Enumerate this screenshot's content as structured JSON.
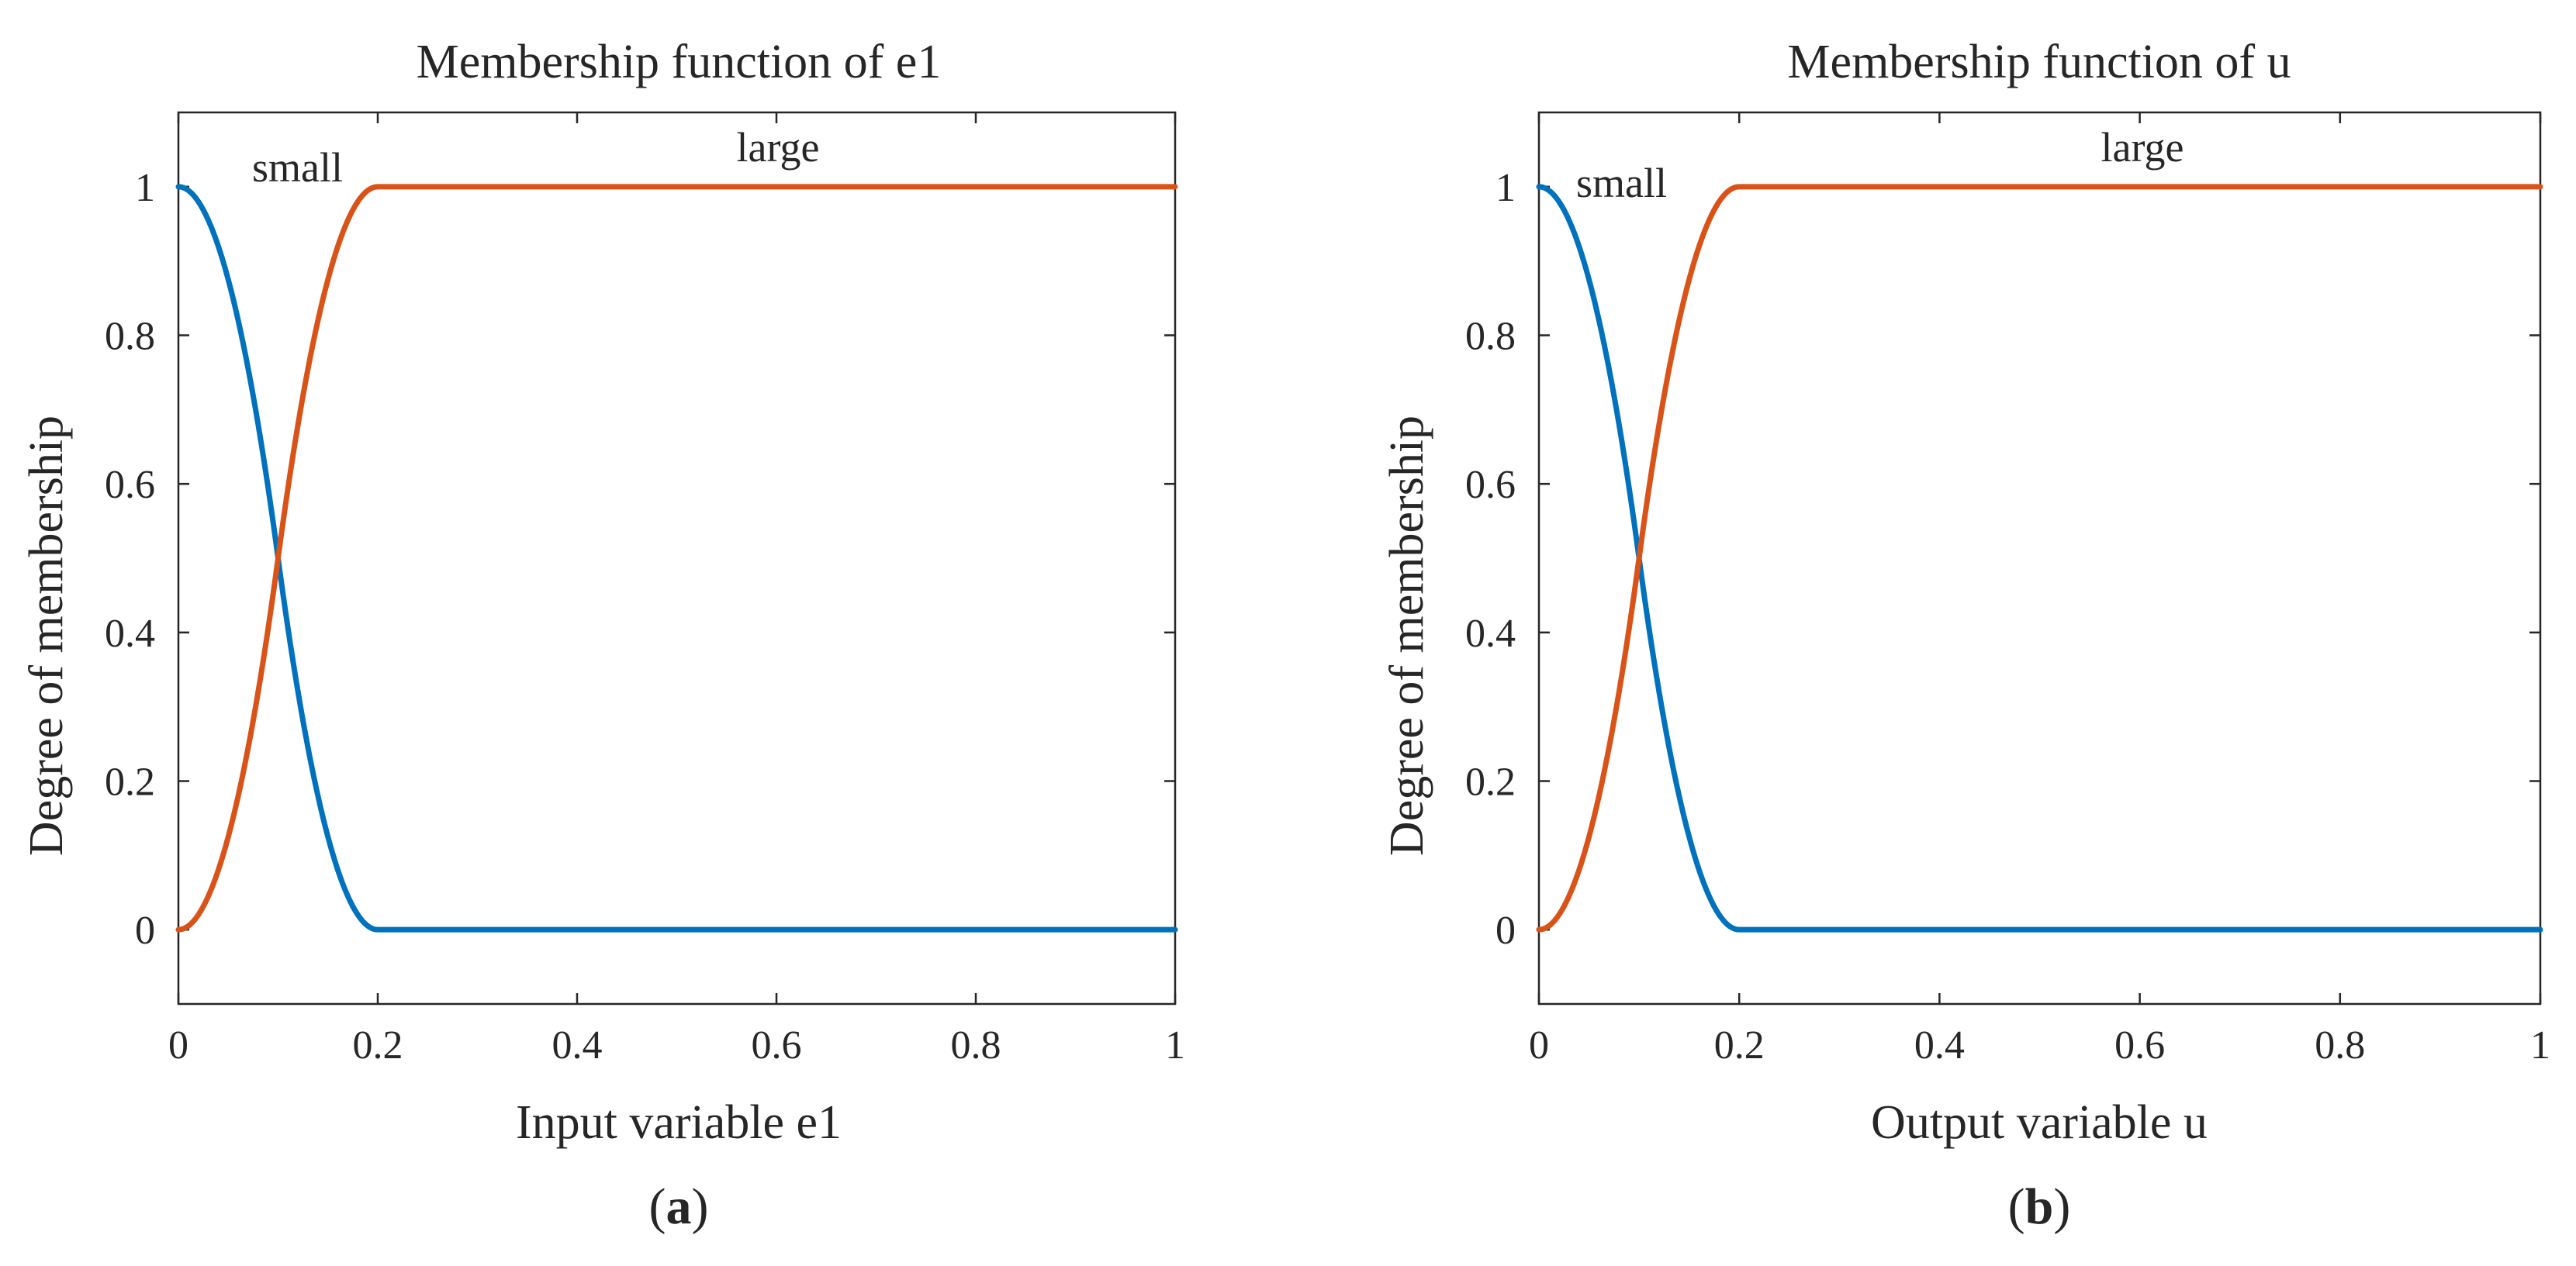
{
  "colors": {
    "small": "#0072BD",
    "large": "#D95319",
    "axis": "#262626"
  },
  "chart_data": [
    {
      "type": "line",
      "panel_label": "a",
      "title": "Membership function of e1",
      "xlabel": "Input variable e1",
      "ylabel": "Degree of membership",
      "xlim": [
        0,
        1
      ],
      "ylim": [
        -0.1,
        1.1
      ],
      "xticks": [
        0,
        0.2,
        0.4,
        0.6,
        0.8,
        1
      ],
      "xtick_labels": [
        "0",
        "0.2",
        "0.4",
        "0.6",
        "0.8",
        "1"
      ],
      "yticks": [
        0,
        0.2,
        0.4,
        0.6,
        0.8,
        1
      ],
      "ytick_labels": [
        "0",
        "0.2",
        "0.4",
        "0.6",
        "0.8",
        "1"
      ],
      "series": [
        {
          "name": "small",
          "label_text": "small",
          "shape": "z-shaped",
          "params": [
            0,
            0.2
          ],
          "x": [
            0,
            0.02,
            0.04,
            0.06,
            0.08,
            0.1,
            0.12,
            0.14,
            0.16,
            0.18,
            0.2,
            0.4,
            0.6,
            0.8,
            1
          ],
          "values": [
            1,
            0.98,
            0.92,
            0.82,
            0.68,
            0.5,
            0.32,
            0.18,
            0.08,
            0.02,
            0,
            0,
            0,
            0,
            0
          ]
        },
        {
          "name": "large",
          "label_text": "large",
          "shape": "s-shaped",
          "params": [
            0,
            0.2
          ],
          "x": [
            0,
            0.02,
            0.04,
            0.06,
            0.08,
            0.1,
            0.12,
            0.14,
            0.16,
            0.18,
            0.2,
            0.4,
            0.6,
            0.8,
            1
          ],
          "values": [
            0,
            0.02,
            0.08,
            0.18,
            0.32,
            0.5,
            0.68,
            0.82,
            0.92,
            0.98,
            1,
            1,
            1,
            1,
            1
          ]
        }
      ]
    },
    {
      "type": "line",
      "panel_label": "b",
      "title": "Membership function of u",
      "xlabel": "Output variable u",
      "ylabel": "Degree of membership",
      "xlim": [
        0,
        1
      ],
      "ylim": [
        -0.1,
        1.1
      ],
      "xticks": [
        0,
        0.2,
        0.4,
        0.6,
        0.8,
        1
      ],
      "xtick_labels": [
        "0",
        "0.2",
        "0.4",
        "0.6",
        "0.8",
        "1"
      ],
      "yticks": [
        0,
        0.2,
        0.4,
        0.6,
        0.8,
        1
      ],
      "ytick_labels": [
        "0",
        "0.2",
        "0.4",
        "0.6",
        "0.8",
        "1"
      ],
      "series": [
        {
          "name": "small",
          "label_text": "small",
          "shape": "z-shaped",
          "params": [
            0,
            0.2
          ],
          "x": [
            0,
            0.02,
            0.04,
            0.06,
            0.08,
            0.1,
            0.12,
            0.14,
            0.16,
            0.18,
            0.2,
            0.4,
            0.6,
            0.8,
            1
          ],
          "values": [
            1,
            0.98,
            0.92,
            0.82,
            0.68,
            0.5,
            0.32,
            0.18,
            0.08,
            0.02,
            0,
            0,
            0,
            0,
            0
          ]
        },
        {
          "name": "large",
          "label_text": "large",
          "shape": "s-shaped",
          "params": [
            0,
            0.2
          ],
          "x": [
            0,
            0.02,
            0.04,
            0.06,
            0.08,
            0.1,
            0.12,
            0.14,
            0.16,
            0.18,
            0.2,
            0.4,
            0.6,
            0.8,
            1
          ],
          "values": [
            0,
            0.02,
            0.08,
            0.18,
            0.32,
            0.5,
            0.68,
            0.82,
            0.92,
            0.98,
            1,
            1,
            1,
            1,
            1
          ]
        }
      ]
    }
  ]
}
